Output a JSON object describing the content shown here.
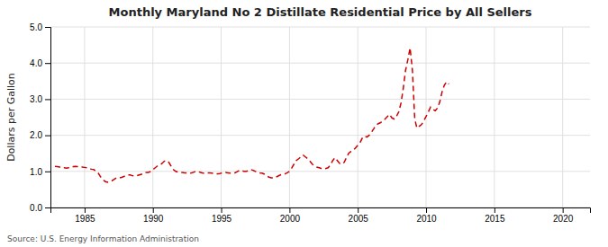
{
  "chart_data": {
    "type": "line",
    "title": "Monthly Maryland No 2 Distillate Residential Price by All Sellers",
    "ylabel": "Dollars per Gallon",
    "source": "Source: U.S. Energy Information Administration",
    "color": "#cc0000",
    "line_style": "dashed",
    "grid": true,
    "xlim": [
      1982.5,
      2022
    ],
    "ylim": [
      0.0,
      5.0
    ],
    "xticks": [
      1985,
      1990,
      1995,
      2000,
      2005,
      2010,
      2015,
      2020
    ],
    "yticks": [
      {
        "value": 0.0,
        "label": "0.0"
      },
      {
        "value": 1.0,
        "label": "1.0"
      },
      {
        "value": 2.0,
        "label": "2.0"
      },
      {
        "value": 3.0,
        "label": "3.0"
      },
      {
        "value": 4.0,
        "label": "4.0"
      },
      {
        "value": 5.0,
        "label": "5.0"
      }
    ],
    "x": [
      1982.83,
      1983.0,
      1983.17,
      1983.33,
      1983.5,
      1983.67,
      1983.83,
      1984.0,
      1984.17,
      1984.33,
      1984.5,
      1984.67,
      1984.83,
      1985.0,
      1985.17,
      1985.33,
      1985.5,
      1985.67,
      1985.83,
      1986.0,
      1986.17,
      1986.33,
      1986.5,
      1986.67,
      1986.83,
      1987.0,
      1987.17,
      1987.33,
      1987.5,
      1987.67,
      1987.83,
      1988.0,
      1988.17,
      1988.33,
      1988.5,
      1988.67,
      1988.83,
      1989.0,
      1989.17,
      1989.33,
      1989.5,
      1989.67,
      1989.83,
      1990.0,
      1990.17,
      1990.33,
      1990.5,
      1990.67,
      1990.83,
      1991.0,
      1991.17,
      1991.33,
      1991.5,
      1991.67,
      1991.83,
      1992.0,
      1992.17,
      1992.33,
      1992.5,
      1992.67,
      1992.83,
      1993.0,
      1993.17,
      1993.33,
      1993.5,
      1993.67,
      1993.83,
      1994.0,
      1994.17,
      1994.33,
      1994.5,
      1994.67,
      1994.83,
      1995.0,
      1995.17,
      1995.33,
      1995.5,
      1995.67,
      1995.83,
      1996.0,
      1996.17,
      1996.33,
      1996.5,
      1996.67,
      1996.83,
      1997.0,
      1997.17,
      1997.33,
      1997.5,
      1997.67,
      1997.83,
      1998.0,
      1998.17,
      1998.33,
      1998.5,
      1998.67,
      1998.83,
      1999.0,
      1999.17,
      1999.33,
      1999.5,
      1999.67,
      1999.83,
      2000.0,
      2000.17,
      2000.33,
      2000.5,
      2000.67,
      2000.83,
      2001.0,
      2001.17,
      2001.33,
      2001.5,
      2001.67,
      2001.83,
      2002.0,
      2002.17,
      2002.33,
      2002.5,
      2002.67,
      2002.83,
      2003.0,
      2003.17,
      2003.33,
      2003.5,
      2003.67,
      2003.83,
      2004.0,
      2004.17,
      2004.33,
      2004.5,
      2004.67,
      2004.83,
      2005.0,
      2005.17,
      2005.33,
      2005.5,
      2005.67,
      2005.83,
      2006.0,
      2006.17,
      2006.33,
      2006.5,
      2006.67,
      2006.83,
      2007.0,
      2007.17,
      2007.33,
      2007.5,
      2007.67,
      2007.83,
      2008.0,
      2008.17,
      2008.33,
      2008.5,
      2008.67,
      2008.83,
      2009.0,
      2009.17,
      2009.33,
      2009.5,
      2009.67,
      2009.83,
      2010.0,
      2010.17,
      2010.33,
      2010.5,
      2010.67,
      2010.83,
      2011.0,
      2011.17,
      2011.33,
      2011.5,
      2011.67
    ],
    "values": [
      1.14,
      1.13,
      1.12,
      1.1,
      1.1,
      1.09,
      1.1,
      1.11,
      1.13,
      1.14,
      1.13,
      1.12,
      1.12,
      1.11,
      1.1,
      1.08,
      1.06,
      1.05,
      1.0,
      0.95,
      0.85,
      0.78,
      0.72,
      0.7,
      0.72,
      0.74,
      0.78,
      0.82,
      0.83,
      0.83,
      0.85,
      0.88,
      0.9,
      0.9,
      0.88,
      0.87,
      0.88,
      0.9,
      0.92,
      0.96,
      0.97,
      0.97,
      1.0,
      1.05,
      1.1,
      1.15,
      1.18,
      1.22,
      1.28,
      1.3,
      1.25,
      1.15,
      1.05,
      1.0,
      0.98,
      0.97,
      0.97,
      0.96,
      0.96,
      0.95,
      0.96,
      0.98,
      1.0,
      0.99,
      0.97,
      0.95,
      0.95,
      0.96,
      0.96,
      0.95,
      0.94,
      0.93,
      0.93,
      0.95,
      0.97,
      0.97,
      0.96,
      0.95,
      0.95,
      0.96,
      0.99,
      1.03,
      1.02,
      1.0,
      1.0,
      1.02,
      1.05,
      1.03,
      1.0,
      0.98,
      0.96,
      0.95,
      0.92,
      0.88,
      0.84,
      0.82,
      0.82,
      0.84,
      0.87,
      0.9,
      0.92,
      0.93,
      0.96,
      1.0,
      1.1,
      1.2,
      1.3,
      1.35,
      1.4,
      1.45,
      1.4,
      1.35,
      1.28,
      1.2,
      1.15,
      1.12,
      1.1,
      1.08,
      1.07,
      1.08,
      1.1,
      1.18,
      1.3,
      1.38,
      1.3,
      1.22,
      1.2,
      1.25,
      1.38,
      1.5,
      1.55,
      1.58,
      1.65,
      1.72,
      1.8,
      1.92,
      1.98,
      1.95,
      2.0,
      2.08,
      2.18,
      2.28,
      2.32,
      2.35,
      2.4,
      2.45,
      2.52,
      2.58,
      2.48,
      2.45,
      2.52,
      2.65,
      2.9,
      3.3,
      3.8,
      4.1,
      4.42,
      3.8,
      2.45,
      2.2,
      2.25,
      2.3,
      2.4,
      2.52,
      2.65,
      2.78,
      2.72,
      2.68,
      2.75,
      2.92,
      3.2,
      3.38,
      3.48,
      3.42
    ]
  }
}
